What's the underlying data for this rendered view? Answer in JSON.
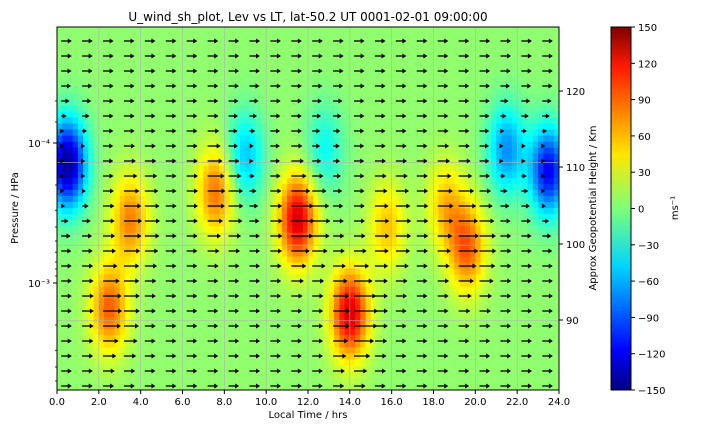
{
  "chart_data": {
    "type": "heatmap",
    "title": "U_wind_sh_plot, Lev vs LT, lat-50.2 UT 0001-02-01 09:00:00",
    "xlabel": "Local Time / hrs",
    "ylabel": "Pressure / HPa",
    "y2label": "Approx Geopotential Height / Km",
    "colorbar_label": "ms⁻¹",
    "xlim": [
      0,
      24
    ],
    "xticks": [
      "0.0",
      "2.0",
      "4.0",
      "6.0",
      "8.0",
      "10.0",
      "12.0",
      "14.0",
      "16.0",
      "18.0",
      "20.0",
      "22.0",
      "24.0"
    ],
    "yscale": "log",
    "yaxis_inverted": true,
    "ylim_log10": [
      -2.68,
      -3.83
    ],
    "yticks": [
      {
        "log10": -4,
        "label": "10⁻⁴"
      },
      {
        "log10": -3,
        "label": "10⁻³"
      }
    ],
    "y2ticks": [
      {
        "log10": -3.35,
        "label": "120"
      },
      {
        "log10": -3.86,
        "label": "110"
      },
      {
        "log10": -3.27,
        "label": "100"
      },
      {
        "log10": -2.73,
        "label": "90"
      }
    ],
    "clim": [
      -150,
      150
    ],
    "cticks": [
      "150",
      "120",
      "90",
      "60",
      "30",
      "0",
      "−30",
      "−60",
      "−90",
      "−120",
      "−150"
    ],
    "colormap": "jet",
    "grid": true,
    "vectors": "wind arrows (predominantly eastward)",
    "bands_note": "zonal wind anomaly features by local time",
    "features": [
      {
        "lt": 0.5,
        "center_log10": -3.85,
        "value": -150
      },
      {
        "lt": 2.5,
        "center_log10": -2.82,
        "value": 80
      },
      {
        "lt": 3.5,
        "center_log10": -3.45,
        "value": 70
      },
      {
        "lt": 7.6,
        "center_log10": -3.65,
        "value": 75
      },
      {
        "lt": 11.5,
        "center_log10": -3.45,
        "value": 120
      },
      {
        "lt": 14.0,
        "center_log10": -2.78,
        "value": 120
      },
      {
        "lt": 15.8,
        "center_log10": -3.4,
        "value": 50
      },
      {
        "lt": 18.6,
        "center_log10": -3.55,
        "value": 50
      },
      {
        "lt": 19.6,
        "center_log10": -3.25,
        "value": 80
      },
      {
        "lt": 21.5,
        "center_log10": -3.95,
        "value": -75
      },
      {
        "lt": 23.5,
        "center_log10": -3.8,
        "value": -120
      },
      {
        "lt": 9.0,
        "center_log10": -3.9,
        "value": -60
      },
      {
        "lt": 12.8,
        "center_log10": -3.95,
        "value": -40
      }
    ]
  }
}
